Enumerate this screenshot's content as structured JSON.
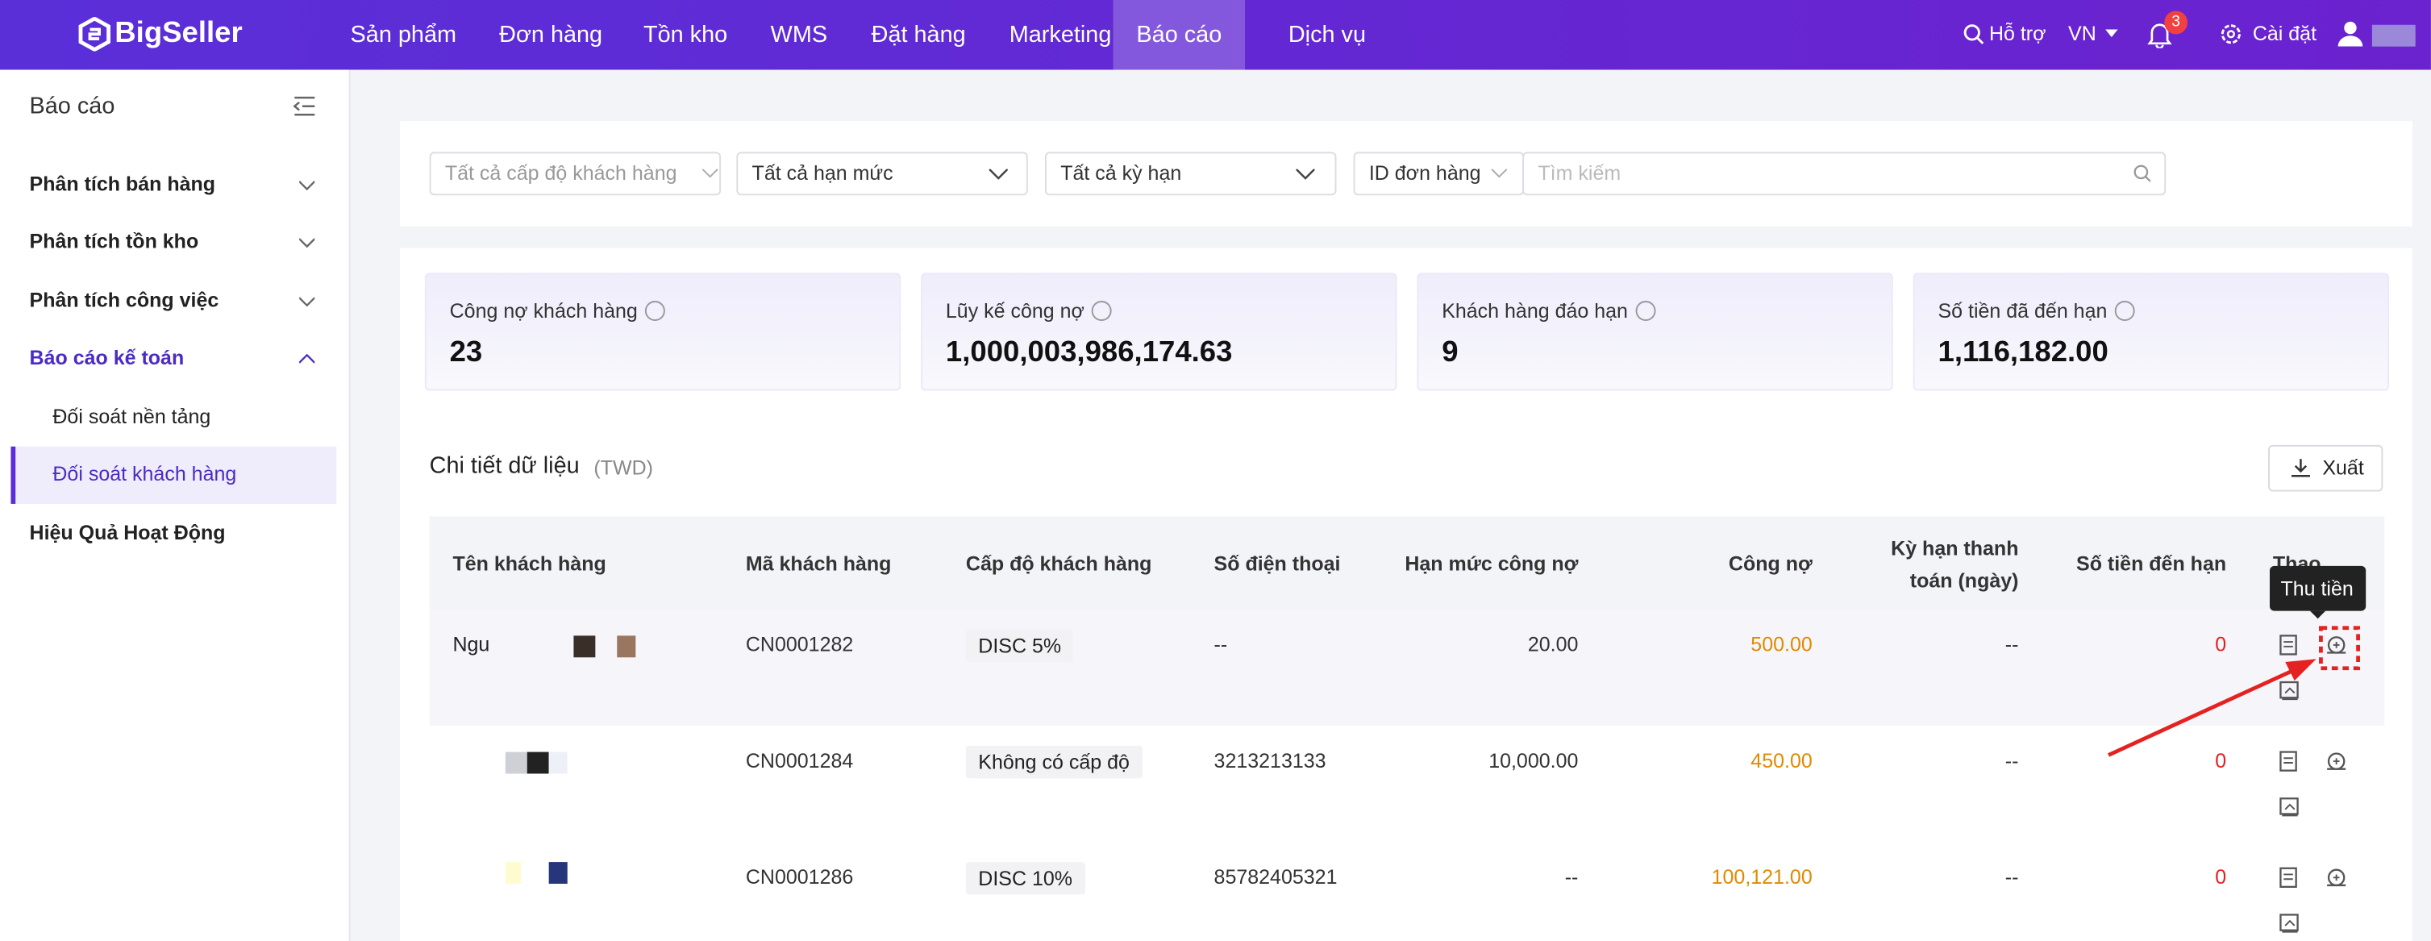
{
  "nav": {
    "logo": "BigSeller",
    "menu": [
      "Sản phẩm",
      "Đơn hàng",
      "Tồn kho",
      "WMS",
      "Đặt hàng",
      "Marketing",
      "Báo cáo",
      "Dịch vụ"
    ],
    "active": 6,
    "support": "Hỗ trợ",
    "language": "VN",
    "notifications": "3",
    "settings": "Cài đặt"
  },
  "sidebar": {
    "title": "Báo cáo",
    "items": [
      {
        "label": "Phân tích bán hàng",
        "kind": "group"
      },
      {
        "label": "Phân tích tồn kho",
        "kind": "group"
      },
      {
        "label": "Phân tích công việc",
        "kind": "group"
      },
      {
        "label": "Báo cáo kế toán",
        "kind": "open"
      },
      {
        "label": "Đối soát nền tảng",
        "kind": "sub"
      },
      {
        "label": "Đối soát khách hàng",
        "kind": "active"
      },
      {
        "label": "Hiệu Quả Hoạt Động",
        "kind": "plain"
      }
    ]
  },
  "filters": {
    "level": "Tất cả cấp độ khách hàng",
    "limit": "Tất cả hạn mức",
    "term": "Tất cả kỳ hạn",
    "search_field": "ID đơn hàng",
    "search_placeholder": "Tìm kiếm"
  },
  "cards": [
    {
      "label": "Công nợ khách hàng",
      "value": "23"
    },
    {
      "label": "Lũy kế công nợ",
      "value": "1,000,003,986,174.63"
    },
    {
      "label": "Khách hàng đáo hạn",
      "value": "9"
    },
    {
      "label": "Số tiền đã đến hạn",
      "value": "1,116,182.00"
    }
  ],
  "section": {
    "title": "Chi tiết dữ liệu",
    "unit": "(TWD)",
    "export": "Xuất"
  },
  "table": {
    "headers": [
      "Tên khách hàng",
      "Mã khách hàng",
      "Cấp độ khách hàng",
      "Số điện thoại",
      "Hạn mức công nợ",
      "Công nợ",
      "Kỳ hạn thanh toán (ngày)",
      "Số tiền đến hạn",
      "Thao"
    ],
    "rows": [
      [
        "Ngu",
        "CN0001282",
        "DISC 5%",
        "--",
        "20.00",
        "500.00",
        "--",
        "0"
      ],
      [
        "",
        "CN0001284",
        "Không có cấp độ",
        "3213213133",
        "10,000.00",
        "450.00",
        "--",
        "0"
      ],
      [
        "",
        "CN0001286",
        "DISC 10%",
        "85782405321",
        "--",
        "100,121.00",
        "--",
        "0"
      ]
    ]
  },
  "tooltip": "Thu tiền"
}
